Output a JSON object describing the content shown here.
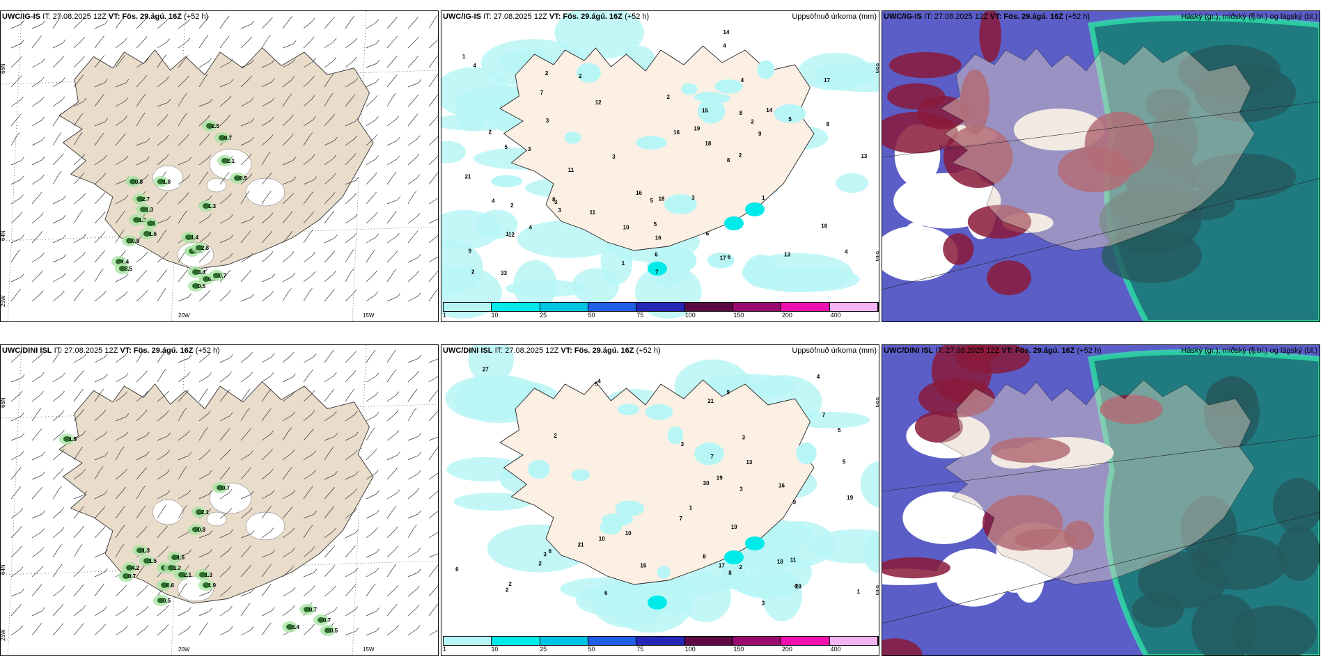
{
  "panels": [
    {
      "id": "r1c1",
      "title_prefix": "UWC/IG-IS",
      "title_it": "IT: 27.08.2025 12Z",
      "title_vt": "VT: Fös. 29.ágú. 16Z",
      "title_lead": "(+52 h)",
      "title_right": "",
      "type": "wind",
      "axis_labels": [
        "66N",
        "64N",
        "25W",
        "20W",
        "15W"
      ],
      "values": [
        "2.5",
        "0.7",
        "2.1",
        "0.5",
        "0.8",
        "1.8",
        "1.3",
        "2.7",
        "1.3",
        "1.2",
        "1",
        "1.6",
        "0.9",
        "1.4",
        "0.8",
        "2.8",
        "1.4",
        "3.5",
        "3.4",
        "0.7",
        "0.5",
        "0.7"
      ]
    },
    {
      "id": "r1c2",
      "title_prefix": "UWC/IG-IS",
      "title_it": "IT: 27.08.2025 12Z",
      "title_vt": "VT: Fös. 29.ágú. 16Z",
      "title_lead": "(+52 h)",
      "title_right": "Uppsöfnuð úrkoma (mm)",
      "type": "precip",
      "axis_labels": [
        "66N",
        "64N"
      ],
      "values": [
        "4",
        "2",
        "4",
        "3",
        "5",
        "18",
        "14",
        "12",
        "8",
        "9",
        "11",
        "6",
        "10",
        "9",
        "2",
        "3",
        "4",
        "16",
        "13",
        "16",
        "8",
        "5",
        "19",
        "21",
        "15",
        "3",
        "2",
        "16",
        "14",
        "8",
        "5",
        "12",
        "6",
        "17",
        "3",
        "1",
        "4",
        "2",
        "7",
        "3",
        "1",
        "2",
        "33",
        "16",
        "11",
        "18",
        "17",
        "13",
        "7",
        "6",
        "8",
        "3",
        "1",
        "2",
        "4",
        "2",
        "1",
        "4",
        "5",
        "2"
      ],
      "colorbar": {
        "ticks": [
          "1",
          "10",
          "25",
          "50",
          "75",
          "100",
          "150",
          "200",
          "400"
        ],
        "colors": [
          "#b8f6f6",
          "#00eaea",
          "#00c4e4",
          "#1f5fe6",
          "#2525b6",
          "#5c0a46",
          "#9a0a6e",
          "#f010b0",
          "#f4b4f4"
        ]
      }
    },
    {
      "id": "r1c3",
      "title_prefix": "UWC/IG-IS",
      "title_it": "IT: 27.08.2025 12Z",
      "title_vt": "VT: Fös. 29.ágú. 16Z",
      "title_lead": "(+52 h)",
      "title_right": "Háský (gr.), miðský (fj.bl.) og lágský (bl.)",
      "type": "cloud"
    },
    {
      "id": "r2c1",
      "title_prefix": "UWC/DINI ISL",
      "title_it": "IT: 27.08.2025 12Z",
      "title_vt": "VT: Fös. 29.ágú. 16Z",
      "title_lead": "(+52 h)",
      "title_right": "",
      "type": "wind",
      "axis_labels": [
        "66N",
        "64N",
        "25W",
        "20W",
        "15W"
      ],
      "values": [
        "1.5",
        "0.7",
        "2.1",
        "0.8",
        "1.3",
        "1.5",
        "4.2",
        "3.8",
        "1.6",
        "1.2",
        "0.7",
        "2.1",
        "0.6",
        "1.3",
        "1.9",
        "0.5",
        "0.7",
        "0.7",
        "0.5",
        "3.4"
      ]
    },
    {
      "id": "r2c2",
      "title_prefix": "UWC/DINI ISL",
      "title_it": "IT: 27.08.2025 12Z",
      "title_vt": "VT: Fös. 29.ágú. 16Z",
      "title_lead": "(+52 h)",
      "title_right": "Uppsöfnuð úrkoma (mm)",
      "type": "precip",
      "axis_labels": [
        "66N",
        "64N"
      ],
      "values": [
        "5",
        "6",
        "7",
        "19",
        "28",
        "16",
        "27",
        "17",
        "19",
        "21",
        "6",
        "4",
        "5",
        "2",
        "3",
        "10",
        "3",
        "8",
        "2",
        "2",
        "18",
        "4",
        "1",
        "7",
        "3",
        "9",
        "15",
        "13",
        "21",
        "30",
        "19",
        "11",
        "10",
        "8",
        "7",
        "3",
        "2",
        "9",
        "5",
        "6",
        "1",
        "2",
        "3",
        "4"
      ],
      "colorbar": {
        "ticks": [
          "1",
          "10",
          "25",
          "50",
          "75",
          "100",
          "150",
          "200",
          "400"
        ],
        "colors": [
          "#b8f6f6",
          "#00eaea",
          "#00c4e4",
          "#1f5fe6",
          "#2525b6",
          "#5c0a46",
          "#9a0a6e",
          "#f010b0",
          "#f4b4f4"
        ]
      }
    },
    {
      "id": "r2c3",
      "title_prefix": "UWC/DINI ISL",
      "title_it": "IT: 27.08.2025 12Z",
      "title_vt": "VT: Fös. 29.ágú. 16Z",
      "title_lead": "(+52 h)",
      "title_right": "Háský (gr.), miðský (fj.bl.) og lágský (bl.)",
      "type": "cloud"
    }
  ]
}
